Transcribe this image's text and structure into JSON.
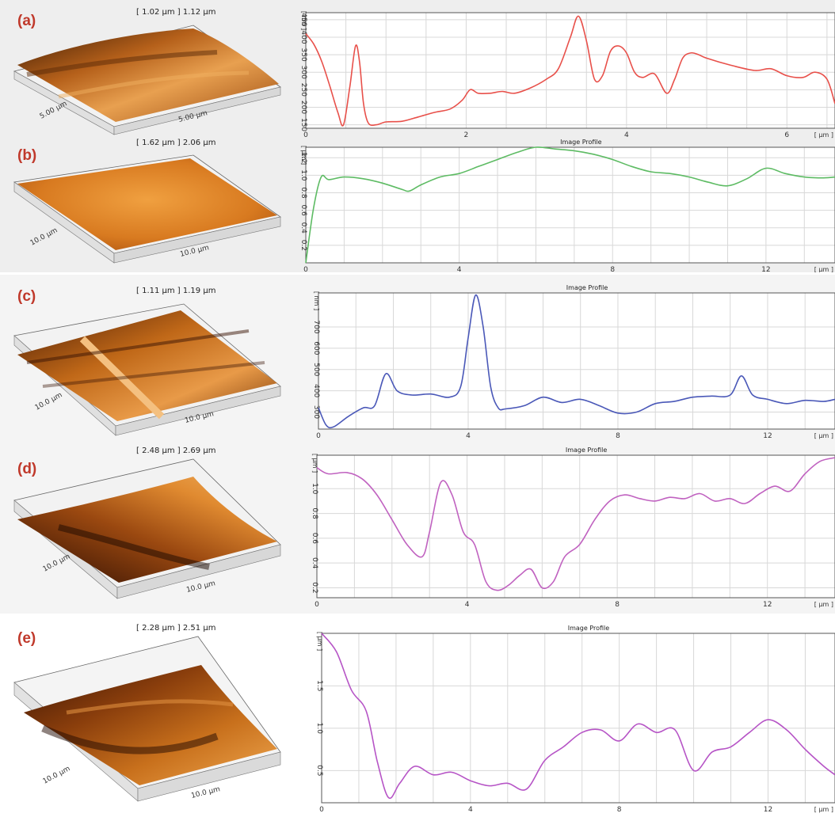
{
  "panels": [
    {
      "letter": "(a)",
      "size_label": "[ 1.02 µm ] 1.12 µm",
      "dim_left": "5.00 µm",
      "dim_right": "5.00 µm"
    },
    {
      "letter": "(b)",
      "size_label": "[ 1.62 µm ] 2.06 µm",
      "dim_left": "10.0 µm",
      "dim_right": "10.0 µm"
    },
    {
      "letter": "(c)",
      "size_label": "[ 1.11 µm ] 1.19 µm",
      "dim_left": "10.0 µm",
      "dim_right": "10.0 µm"
    },
    {
      "letter": "(d)",
      "size_label": "[ 2.48 µm ] 2.69 µm",
      "dim_left": "10.0 µm",
      "dim_right": "10.0 µm"
    },
    {
      "letter": "(e)",
      "size_label": "[ 2.28 µm ] 2.51 µm",
      "dim_left": "10.0 µm",
      "dim_right": "10.0 µm"
    }
  ],
  "chart_data": [
    {
      "type": "line",
      "title": "",
      "xunit": "[ µm ]",
      "yunit": "[ nm ]",
      "xlim": [
        0,
        6.6
      ],
      "ylim": [
        140,
        470
      ],
      "xticks": [
        0,
        2,
        4,
        6
      ],
      "xtick_labels": [
        "0",
        "2",
        "4",
        "6"
      ],
      "yticks": [
        150,
        200,
        250,
        300,
        350,
        400,
        450
      ],
      "ytick_labels": [
        "150",
        "200",
        "250",
        "300",
        "350",
        "400",
        "450"
      ],
      "color": "#e8504a",
      "x": [
        0,
        0.1,
        0.2,
        0.3,
        0.4,
        0.47,
        0.55,
        0.62,
        0.67,
        0.72,
        0.78,
        0.88,
        1.0,
        1.2,
        1.4,
        1.6,
        1.8,
        1.95,
        2.05,
        2.15,
        2.3,
        2.45,
        2.6,
        2.8,
        3.0,
        3.15,
        3.3,
        3.4,
        3.5,
        3.6,
        3.7,
        3.8,
        3.9,
        4.0,
        4.1,
        4.2,
        4.35,
        4.5,
        4.6,
        4.7,
        4.8,
        4.9,
        5.0,
        5.3,
        5.6,
        5.8,
        6.0,
        6.2,
        6.35,
        6.5,
        6.6
      ],
      "y": [
        410,
        380,
        330,
        260,
        185,
        150,
        260,
        375,
        330,
        210,
        155,
        150,
        158,
        160,
        172,
        185,
        195,
        220,
        250,
        240,
        240,
        245,
        240,
        255,
        280,
        310,
        400,
        460,
        390,
        280,
        290,
        360,
        375,
        355,
        300,
        285,
        295,
        240,
        280,
        340,
        355,
        350,
        340,
        320,
        305,
        310,
        290,
        285,
        300,
        280,
        210
      ]
    },
    {
      "type": "line",
      "title": "Image Profile",
      "xunit": "[ µm ]",
      "yunit": "[ µm ]",
      "xlim": [
        0,
        13.8
      ],
      "ylim": [
        0,
        1.32
      ],
      "xticks": [
        0,
        4,
        8,
        12
      ],
      "xtick_labels": [
        "0",
        "4",
        "8",
        "12"
      ],
      "yticks": [
        0.2,
        0.4,
        0.6,
        0.8,
        1.0,
        1.2
      ],
      "ytick_labels": [
        "0.2",
        "0.4",
        "0.6",
        "0.8",
        "1.0",
        "1.2"
      ],
      "color": "#5dbb63",
      "x": [
        0,
        0.2,
        0.4,
        0.6,
        1.0,
        1.5,
        2.0,
        2.5,
        2.7,
        3.0,
        3.5,
        4.0,
        4.5,
        5.0,
        5.5,
        6.0,
        6.5,
        7.0,
        7.5,
        8.0,
        8.5,
        9.0,
        9.5,
        10.0,
        10.5,
        11.0,
        11.5,
        12.0,
        12.5,
        13.0,
        13.5,
        13.8
      ],
      "y": [
        0,
        0.62,
        0.98,
        0.95,
        0.98,
        0.96,
        0.91,
        0.84,
        0.82,
        0.89,
        0.98,
        1.02,
        1.1,
        1.18,
        1.26,
        1.32,
        1.3,
        1.28,
        1.24,
        1.18,
        1.1,
        1.04,
        1.02,
        0.98,
        0.92,
        0.88,
        0.96,
        1.08,
        1.02,
        0.98,
        0.97,
        0.98
      ]
    },
    {
      "type": "line",
      "title": "Image Profile",
      "xunit": "[ µm ]",
      "yunit": "[ nm ]",
      "xlim": [
        0,
        13.8
      ],
      "ylim": [
        220,
        860
      ],
      "xticks": [
        0,
        4,
        8,
        12
      ],
      "xtick_labels": [
        "0",
        "4",
        "8",
        "12"
      ],
      "yticks": [
        300,
        400,
        500,
        600,
        700
      ],
      "ytick_labels": [
        "300",
        "400",
        "500",
        "600",
        "700"
      ],
      "color": "#4a58b8",
      "x": [
        0,
        0.2,
        0.4,
        0.8,
        1.2,
        1.5,
        1.8,
        2.1,
        2.5,
        3.0,
        3.5,
        3.8,
        4.0,
        4.2,
        4.4,
        4.6,
        4.8,
        5.0,
        5.5,
        6.0,
        6.5,
        7.0,
        7.5,
        8.0,
        8.5,
        9.0,
        9.5,
        10.0,
        10.5,
        11.0,
        11.3,
        11.6,
        12.0,
        12.5,
        13.0,
        13.5,
        13.8
      ],
      "y": [
        320,
        240,
        230,
        280,
        320,
        330,
        480,
        400,
        380,
        385,
        370,
        420,
        650,
        850,
        700,
        420,
        320,
        315,
        330,
        370,
        345,
        360,
        330,
        295,
        300,
        340,
        350,
        370,
        375,
        380,
        470,
        380,
        360,
        340,
        355,
        350,
        360
      ]
    },
    {
      "type": "line",
      "title": "Image Profile",
      "xunit": "[ µm ]",
      "yunit": "[ µm ]",
      "xlim": [
        0,
        13.8
      ],
      "ylim": [
        0.12,
        1.27
      ],
      "xticks": [
        0,
        4,
        8,
        12
      ],
      "xtick_labels": [
        "0",
        "4",
        "8",
        "12"
      ],
      "yticks": [
        0.2,
        0.4,
        0.6,
        0.8,
        1.0
      ],
      "ytick_labels": [
        "0.2",
        "0.4",
        "0.6",
        "0.8",
        "1.0"
      ],
      "color": "#c062c0",
      "x": [
        0,
        0.3,
        0.8,
        1.2,
        1.6,
        2.0,
        2.4,
        2.8,
        3.0,
        3.3,
        3.6,
        3.9,
        4.2,
        4.5,
        4.8,
        5.1,
        5.4,
        5.7,
        6.0,
        6.3,
        6.6,
        7.0,
        7.4,
        7.8,
        8.2,
        8.6,
        9.0,
        9.4,
        9.8,
        10.2,
        10.6,
        11.0,
        11.4,
        11.8,
        12.2,
        12.6,
        13.0,
        13.4,
        13.8
      ],
      "y": [
        1.17,
        1.12,
        1.13,
        1.08,
        0.95,
        0.75,
        0.55,
        0.45,
        0.65,
        1.05,
        0.95,
        0.65,
        0.55,
        0.25,
        0.18,
        0.22,
        0.3,
        0.35,
        0.2,
        0.25,
        0.45,
        0.55,
        0.75,
        0.9,
        0.95,
        0.92,
        0.9,
        0.93,
        0.92,
        0.96,
        0.9,
        0.92,
        0.88,
        0.96,
        1.02,
        0.98,
        1.12,
        1.22,
        1.25
      ]
    },
    {
      "type": "line",
      "title": "Image Profile",
      "xunit": "[ µm ]",
      "yunit": "[ µm ]",
      "xlim": [
        0,
        13.8
      ],
      "ylim": [
        0.12,
        2.12
      ],
      "xticks": [
        0,
        4,
        8,
        12
      ],
      "xtick_labels": [
        "0",
        "4",
        "8",
        "12"
      ],
      "yticks": [
        0.5,
        1.0,
        1.5
      ],
      "ytick_labels": [
        "0.5",
        "1.0",
        "1.5"
      ],
      "color": "#b654c6",
      "x": [
        0,
        0.4,
        0.8,
        1.2,
        1.5,
        1.8,
        2.1,
        2.5,
        3.0,
        3.5,
        4.0,
        4.5,
        5.0,
        5.5,
        6.0,
        6.5,
        7.0,
        7.5,
        8.0,
        8.5,
        9.0,
        9.5,
        10.0,
        10.5,
        11.0,
        11.5,
        12.0,
        12.5,
        13.0,
        13.5,
        13.8
      ],
      "y": [
        2.12,
        1.9,
        1.45,
        1.2,
        0.6,
        0.18,
        0.35,
        0.55,
        0.45,
        0.48,
        0.38,
        0.32,
        0.35,
        0.28,
        0.62,
        0.78,
        0.95,
        0.98,
        0.85,
        1.05,
        0.95,
        0.98,
        0.5,
        0.72,
        0.78,
        0.95,
        1.1,
        0.98,
        0.75,
        0.55,
        0.45
      ]
    }
  ]
}
